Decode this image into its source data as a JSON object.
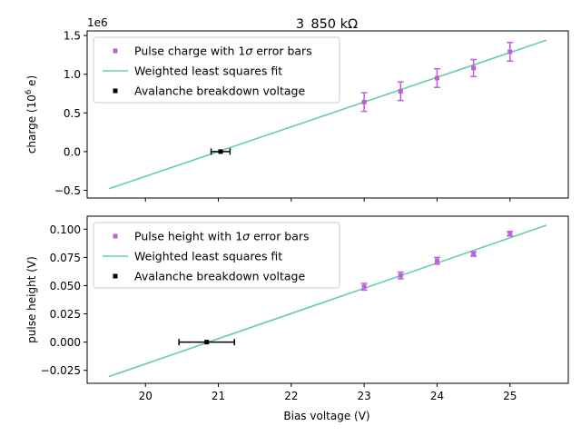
{
  "title": "3_850 kΩ",
  "xlabel": "Bias voltage (V)",
  "colors": {
    "data": "#bf5fdb",
    "fit": "#66cdaa",
    "breakdown": "#000000",
    "axes": "#000000"
  },
  "chart_data": [
    {
      "type": "scatter",
      "name": "top",
      "ylabel_parts": [
        "charge (10",
        "6",
        " e)"
      ],
      "offset_text": "1e6",
      "xlim": [
        19.2,
        25.8
      ],
      "ylim": [
        -0.6,
        1.56
      ],
      "xticks": [
        20,
        21,
        22,
        23,
        24,
        25
      ],
      "yticks": [
        -0.5,
        0.0,
        0.5,
        1.0,
        1.5
      ],
      "ytick_labels": [
        "−0.5",
        "0.0",
        "0.5",
        "1.0",
        "1.5"
      ],
      "show_xtick_labels": false,
      "legend": [
        {
          "kind": "data",
          "label_parts": [
            "Pulse charge with 1",
            "σ",
            " error bars"
          ]
        },
        {
          "kind": "fit",
          "label": "Weighted least squares fit"
        },
        {
          "kind": "breakdown",
          "label": "Avalanche breakdown voltage"
        }
      ],
      "points": [
        {
          "x": 23.0,
          "y": 0.64,
          "err": 0.12
        },
        {
          "x": 23.5,
          "y": 0.78,
          "err": 0.12
        },
        {
          "x": 24.0,
          "y": 0.95,
          "err": 0.12
        },
        {
          "x": 24.5,
          "y": 1.08,
          "err": 0.11
        },
        {
          "x": 25.0,
          "y": 1.29,
          "err": 0.12
        }
      ],
      "fit": {
        "x": [
          19.5,
          25.5
        ],
        "y": [
          -0.48,
          1.44
        ]
      },
      "breakdown": {
        "x": 21.03,
        "y": 0.0,
        "xerr": 0.13
      }
    },
    {
      "type": "scatter",
      "name": "bottom",
      "ylabel_parts": [
        "pulse height (V)"
      ],
      "offset_text": "",
      "xlim": [
        19.2,
        25.8
      ],
      "ylim": [
        -0.0365,
        0.1115
      ],
      "xticks": [
        20,
        21,
        22,
        23,
        24,
        25
      ],
      "xtick_labels": [
        "20",
        "21",
        "22",
        "23",
        "24",
        "25"
      ],
      "yticks": [
        -0.025,
        0.0,
        0.025,
        0.05,
        0.075,
        0.1
      ],
      "ytick_labels": [
        "−0.025",
        "0.000",
        "0.025",
        "0.050",
        "0.075",
        "0.100"
      ],
      "show_xtick_labels": true,
      "legend": [
        {
          "kind": "data",
          "label_parts": [
            "Pulse height with 1",
            "σ",
            " error bars"
          ]
        },
        {
          "kind": "fit",
          "label": "Weighted least squares fit"
        },
        {
          "kind": "breakdown",
          "label": "Avalanche breakdown voltage"
        }
      ],
      "points": [
        {
          "x": 23.0,
          "y": 0.049,
          "err": 0.003
        },
        {
          "x": 23.5,
          "y": 0.059,
          "err": 0.003
        },
        {
          "x": 24.0,
          "y": 0.072,
          "err": 0.003
        },
        {
          "x": 24.5,
          "y": 0.078,
          "err": 0.002
        },
        {
          "x": 25.0,
          "y": 0.096,
          "err": 0.002
        }
      ],
      "fit": {
        "x": [
          19.5,
          25.5
        ],
        "y": [
          -0.0305,
          0.1035
        ]
      },
      "breakdown": {
        "x": 20.84,
        "y": 0.0,
        "xerr": 0.38
      }
    }
  ]
}
